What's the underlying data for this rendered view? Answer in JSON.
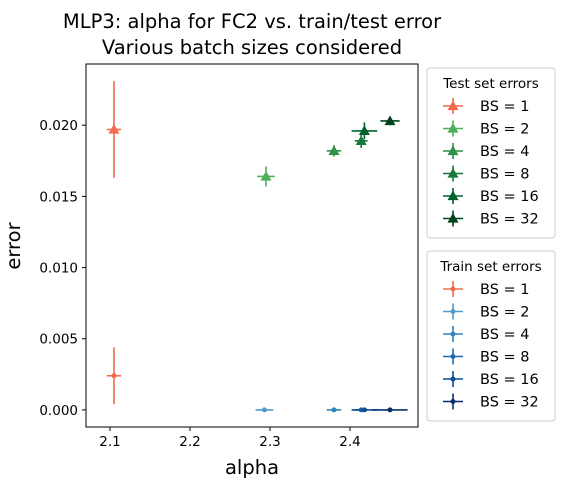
{
  "chart_data": {
    "type": "scatter",
    "title": "MLP3: alpha for FC2 vs. train/test error",
    "subtitle": "Various batch sizes considered",
    "xlabel": "alpha",
    "ylabel": "error",
    "xlim": [
      2.07,
      2.485
    ],
    "ylim": [
      -0.0012,
      0.0243
    ],
    "xticks": [
      2.1,
      2.2,
      2.3,
      2.4
    ],
    "xtick_labels": [
      "2.1",
      "2.2",
      "2.3",
      "2.4"
    ],
    "yticks": [
      0.0,
      0.005,
      0.01,
      0.015,
      0.02
    ],
    "ytick_labels": [
      "0.000",
      "0.005",
      "0.010",
      "0.015",
      "0.020"
    ],
    "grid": false,
    "legend_placement": "outside-right",
    "legends": [
      {
        "title": "Test set errors",
        "marker": "triangle",
        "entries": [
          {
            "name": "BS = 1",
            "color": "#f26a4f"
          },
          {
            "name": "BS = 2",
            "color": "#4fae5b"
          },
          {
            "name": "BS = 4",
            "color": "#2f9147"
          },
          {
            "name": "BS = 8",
            "color": "#15793a"
          },
          {
            "name": "BS = 16",
            "color": "#00612a"
          },
          {
            "name": "BS = 32",
            "color": "#00441b"
          }
        ]
      },
      {
        "title": "Train set errors",
        "marker": "dot",
        "entries": [
          {
            "name": "BS = 1",
            "color": "#f26a4f"
          },
          {
            "name": "BS = 2",
            "color": "#4f9bcc"
          },
          {
            "name": "BS = 4",
            "color": "#3182bd"
          },
          {
            "name": "BS = 8",
            "color": "#1c6aaf"
          },
          {
            "name": "BS = 16",
            "color": "#0b4f95"
          },
          {
            "name": "BS = 32",
            "color": "#08306b"
          }
        ]
      }
    ],
    "series": [
      {
        "group": "test",
        "name": "BS = 1",
        "color": "#f26a4f",
        "marker": "triangle",
        "x": 2.105,
        "y": 0.0197,
        "xerr": 0.009,
        "yerr": 0.0034
      },
      {
        "group": "test",
        "name": "BS = 2",
        "color": "#4fae5b",
        "marker": "triangle",
        "x": 2.295,
        "y": 0.0164,
        "xerr": 0.011,
        "yerr": 0.0007
      },
      {
        "group": "test",
        "name": "BS = 4",
        "color": "#2f9147",
        "marker": "triangle",
        "x": 2.38,
        "y": 0.0182,
        "xerr": 0.009,
        "yerr": 0.0004
      },
      {
        "group": "test",
        "name": "BS = 8",
        "color": "#15793a",
        "marker": "triangle",
        "x": 2.414,
        "y": 0.0189,
        "xerr": 0.008,
        "yerr": 0.0005
      },
      {
        "group": "test",
        "name": "BS = 16",
        "color": "#00612a",
        "marker": "triangle",
        "x": 2.418,
        "y": 0.0196,
        "xerr": 0.016,
        "yerr": 0.0006
      },
      {
        "group": "test",
        "name": "BS = 32",
        "color": "#00441b",
        "marker": "triangle",
        "x": 2.45,
        "y": 0.0203,
        "xerr": 0.012,
        "yerr": 0.0003
      },
      {
        "group": "train",
        "name": "BS = 1",
        "color": "#f26a4f",
        "marker": "dot",
        "x": 2.105,
        "y": 0.0024,
        "xerr": 0.009,
        "yerr": 0.002
      },
      {
        "group": "train",
        "name": "BS = 2",
        "color": "#4f9bcc",
        "marker": "dot",
        "x": 2.293,
        "y": 0.0,
        "xerr": 0.011,
        "yerr": 0.0
      },
      {
        "group": "train",
        "name": "BS = 4",
        "color": "#3182bd",
        "marker": "dot",
        "x": 2.38,
        "y": 0.0,
        "xerr": 0.009,
        "yerr": 0.0
      },
      {
        "group": "train",
        "name": "BS = 8",
        "color": "#1c6aaf",
        "marker": "dot",
        "x": 2.414,
        "y": 0.0,
        "xerr": 0.008,
        "yerr": 0.0
      },
      {
        "group": "train",
        "name": "BS = 16",
        "color": "#0b4f95",
        "marker": "dot",
        "x": 2.418,
        "y": 0.0,
        "xerr": 0.016,
        "yerr": 0.0
      },
      {
        "group": "train",
        "name": "BS = 32",
        "color": "#08306b",
        "marker": "dot",
        "x": 2.45,
        "y": 0.0,
        "xerr": 0.022,
        "yerr": 0.0
      }
    ]
  }
}
